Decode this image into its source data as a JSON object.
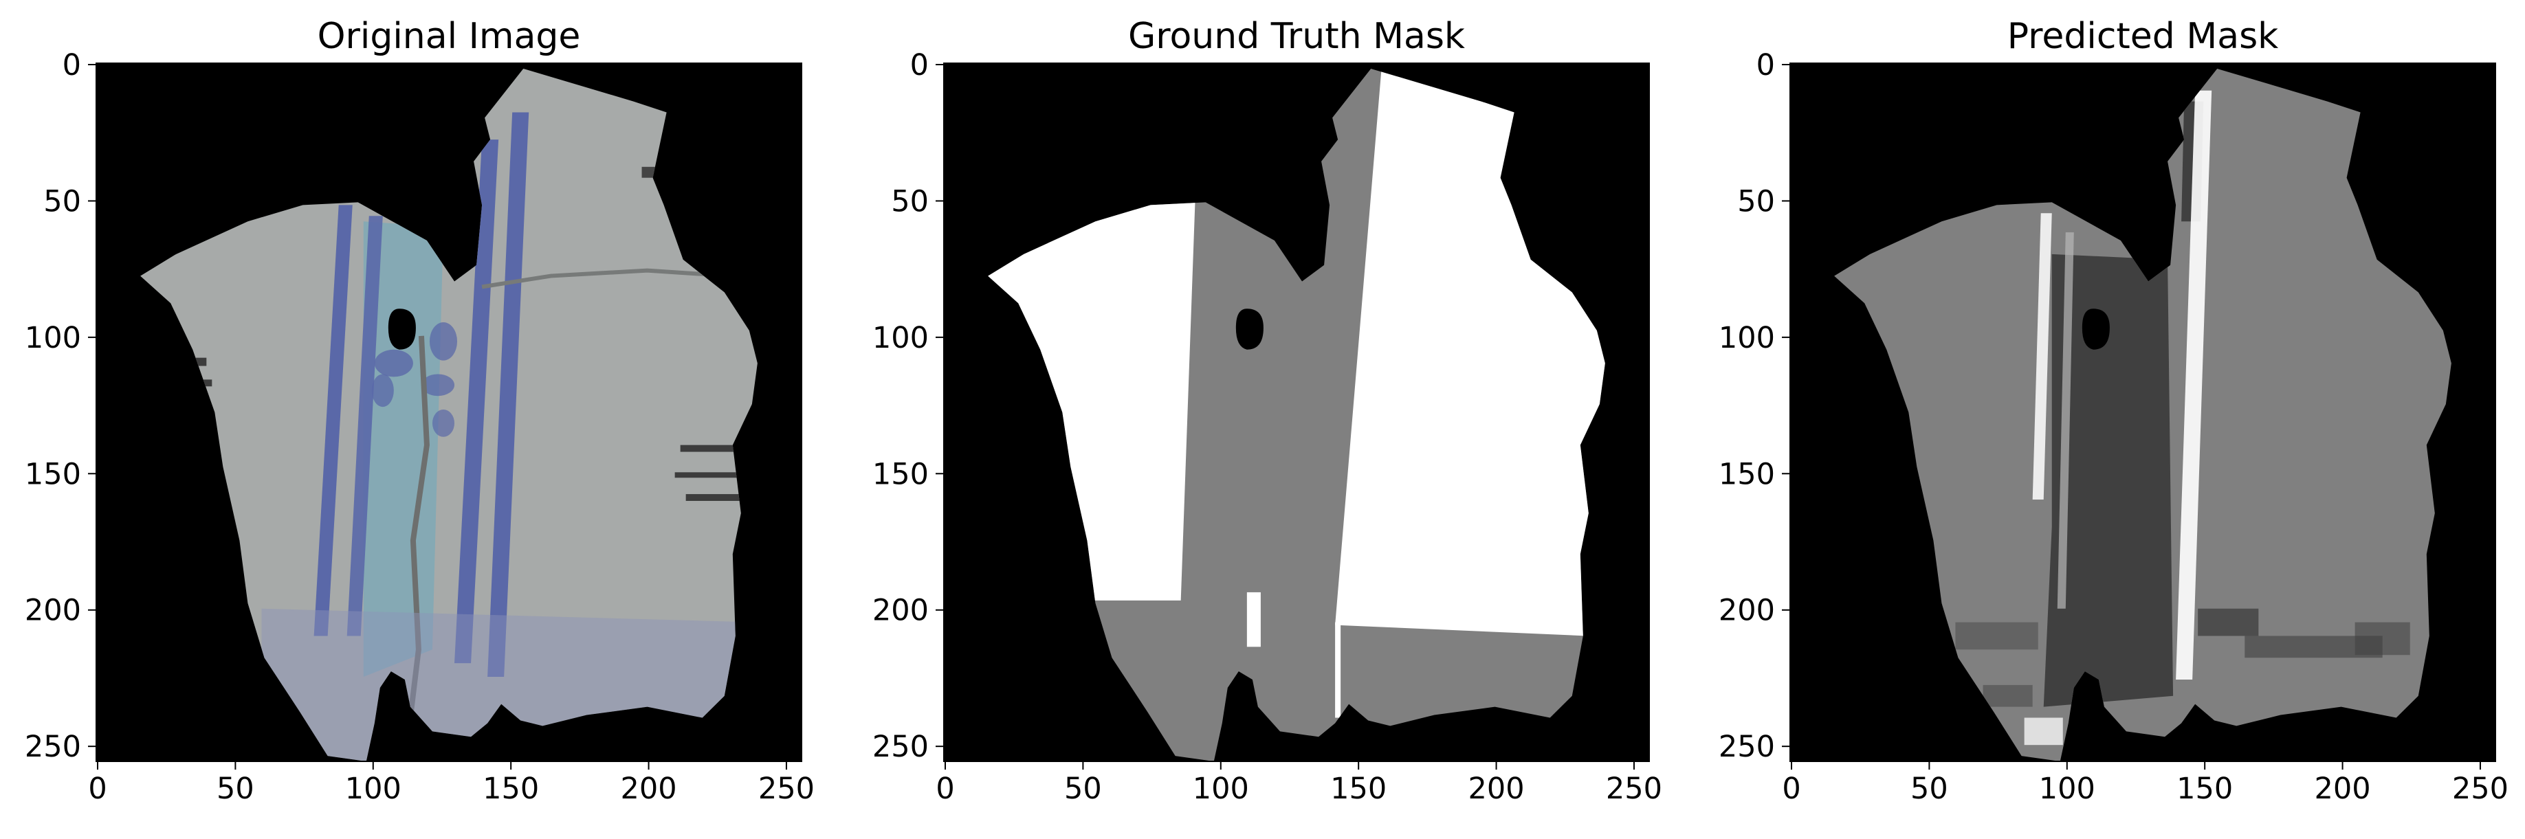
{
  "panels": [
    {
      "title": "Original Image"
    },
    {
      "title": "Ground Truth Mask"
    },
    {
      "title": "Predicted Mask"
    }
  ],
  "axes": {
    "x_ticks": [
      "0",
      "50",
      "100",
      "150",
      "200",
      "250"
    ],
    "y_ticks": [
      "0",
      "50",
      "100",
      "150",
      "200",
      "250"
    ]
  },
  "colors": {
    "background": "#000000",
    "parchment": "#a7aaa9",
    "stripe_blue": "#5a68a8",
    "teal_pigment": "#7fa9b6",
    "mask_white": "#ffffff",
    "mask_gray": "#808080",
    "mask_dark": "#404040"
  }
}
